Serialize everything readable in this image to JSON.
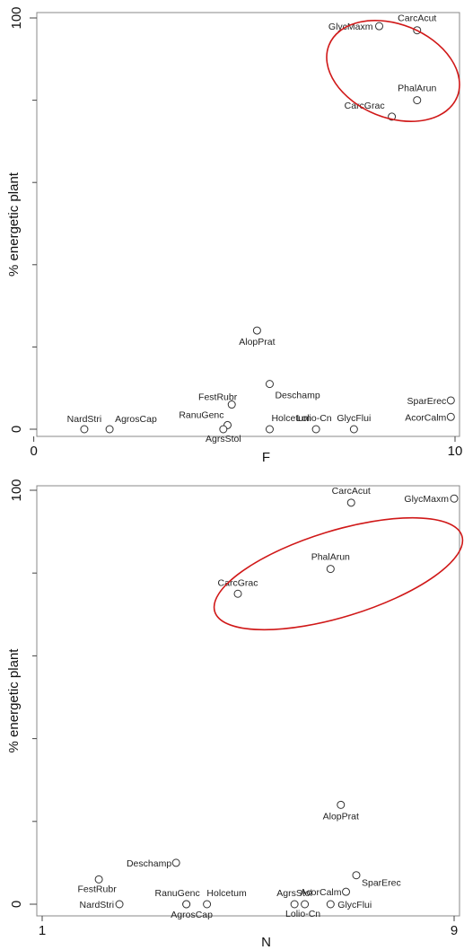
{
  "chart_data": [
    {
      "type": "scatter",
      "xlabel": "F",
      "ylabel": "% energetic plant",
      "xlim": [
        0.2,
        10
      ],
      "ylim": [
        0,
        100
      ],
      "x_ticks": [
        0,
        10
      ],
      "y_ticks": [
        0,
        100
      ],
      "points": [
        {
          "label": "GlycMaxm",
          "x": 8.2,
          "y": 98
        },
        {
          "label": "CarcAcut",
          "x": 9.1,
          "y": 97
        },
        {
          "label": "PhalArun",
          "x": 9.1,
          "y": 80
        },
        {
          "label": "CarcGrac",
          "x": 8.5,
          "y": 76
        },
        {
          "label": "AlopPrat",
          "x": 5.3,
          "y": 24
        },
        {
          "label": "Deschamp",
          "x": 5.6,
          "y": 11
        },
        {
          "label": "FestRubr",
          "x": 4.7,
          "y": 6
        },
        {
          "label": "RanuGenc",
          "x": 4.6,
          "y": 1
        },
        {
          "label": "AgrsStol",
          "x": 4.5,
          "y": 0
        },
        {
          "label": "NardStri",
          "x": 1.2,
          "y": 0
        },
        {
          "label": "AgrosCap",
          "x": 1.8,
          "y": 0
        },
        {
          "label": "Holcetum",
          "x": 5.6,
          "y": 0
        },
        {
          "label": "Lolio-Cn",
          "x": 6.7,
          "y": 0
        },
        {
          "label": "GlycFlui",
          "x": 7.6,
          "y": 0
        },
        {
          "label": "SparErec",
          "x": 9.9,
          "y": 7
        },
        {
          "label": "AcorCalm",
          "x": 9.9,
          "y": 3
        }
      ]
    },
    {
      "type": "scatter",
      "xlabel": "N",
      "ylabel": "% energetic plant",
      "xlim": [
        1,
        9
      ],
      "ylim": [
        0,
        100
      ],
      "x_ticks": [
        1,
        9
      ],
      "y_ticks": [
        0,
        100
      ],
      "points": [
        {
          "label": "CarcAcut",
          "x": 7.0,
          "y": 97
        },
        {
          "label": "GlycMaxm",
          "x": 9.0,
          "y": 98
        },
        {
          "label": "PhalArun",
          "x": 6.6,
          "y": 81
        },
        {
          "label": "CarcGrac",
          "x": 4.8,
          "y": 75
        },
        {
          "label": "AlopPrat",
          "x": 6.8,
          "y": 24
        },
        {
          "label": "Deschamp",
          "x": 3.6,
          "y": 10
        },
        {
          "label": "FestRubr",
          "x": 2.1,
          "y": 6
        },
        {
          "label": "SparErec",
          "x": 7.1,
          "y": 7
        },
        {
          "label": "AcorCalm",
          "x": 6.9,
          "y": 3
        },
        {
          "label": "NardStri",
          "x": 2.5,
          "y": 0
        },
        {
          "label": "RanuGenc",
          "x": 3.8,
          "y": 0
        },
        {
          "label": "AgrosCap",
          "x": 3.8,
          "y": 0
        },
        {
          "label": "Holcetum",
          "x": 4.2,
          "y": 0
        },
        {
          "label": "AgrsStol",
          "x": 5.9,
          "y": 0
        },
        {
          "label": "Lolio-Cn",
          "x": 6.1,
          "y": 0
        },
        {
          "label": "GlycFlui",
          "x": 6.6,
          "y": 0
        }
      ]
    }
  ],
  "colors": {
    "ellipse": "#d01818",
    "frame": "#888888",
    "marker_stroke": "#333333"
  }
}
